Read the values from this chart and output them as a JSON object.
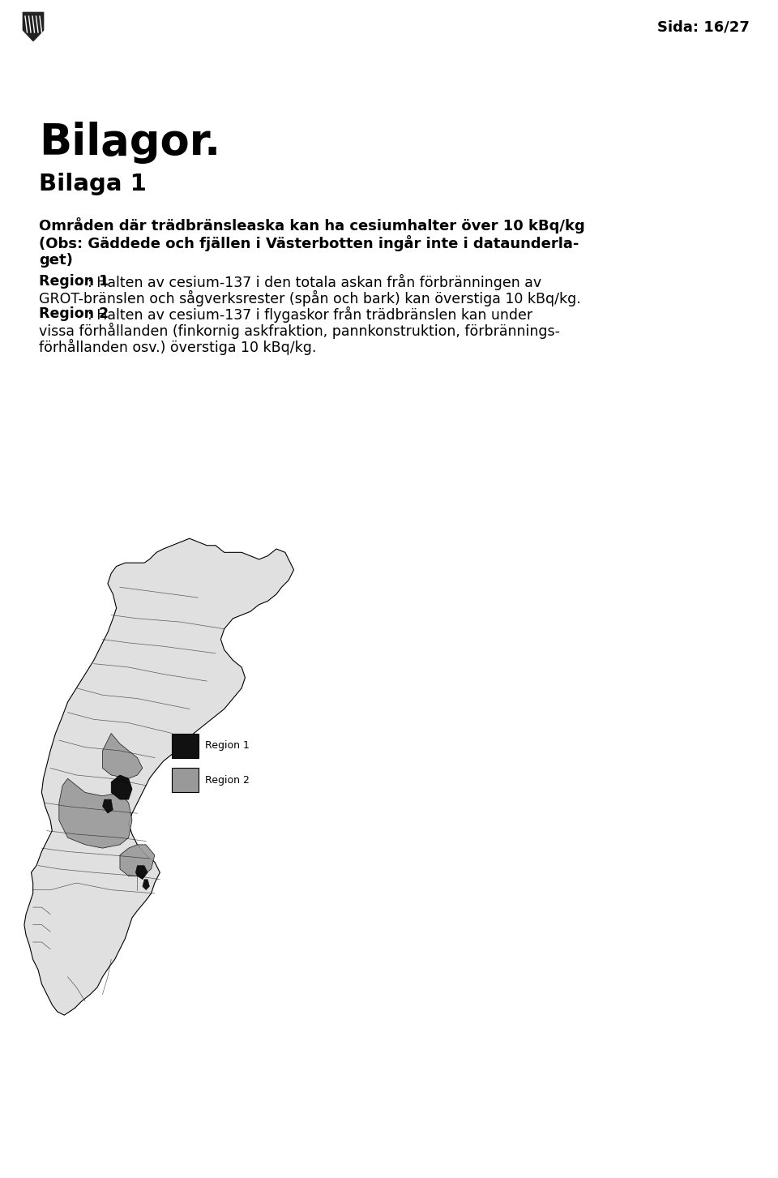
{
  "page_number": "Sida: 16/27",
  "title": "Bilagor.",
  "subtitle": "Bilaga 1",
  "bold_heading_line1": "Områden där trädbränsleaska kan ha cesiumhalter över 10 kBq/kg",
  "bold_heading_line2": "(Obs: Gäddede och fjällen i Västerbotten ingår inte i dataunderla-",
  "bold_heading_line3": "get)",
  "region1_label": "Region 1",
  "region1_text_line1": ": Halten av cesium-137 i den totala askan från förbränningen av",
  "region1_text_line2": "GROT-bränslen och sågverksrester (spån och bark) kan överstiga 10 kBq/kg.",
  "region2_label": "Region 2",
  "region2_text_line1": ": Halten av cesium-137 i flygaskor från trädbränslen kan under",
  "region2_text_line2": "vissa förhållanden (finkornig askfraktion, pannkonstruktion, förbrännings-",
  "region2_text_line3": "förhållanden osv.) överstiga 10 kBq/kg.",
  "legend_region1": "Region 1",
  "legend_region2": "Region 2",
  "region1_color": "#111111",
  "region2_color": "#999999",
  "bg_color": "#ffffff",
  "text_color": "#000000"
}
